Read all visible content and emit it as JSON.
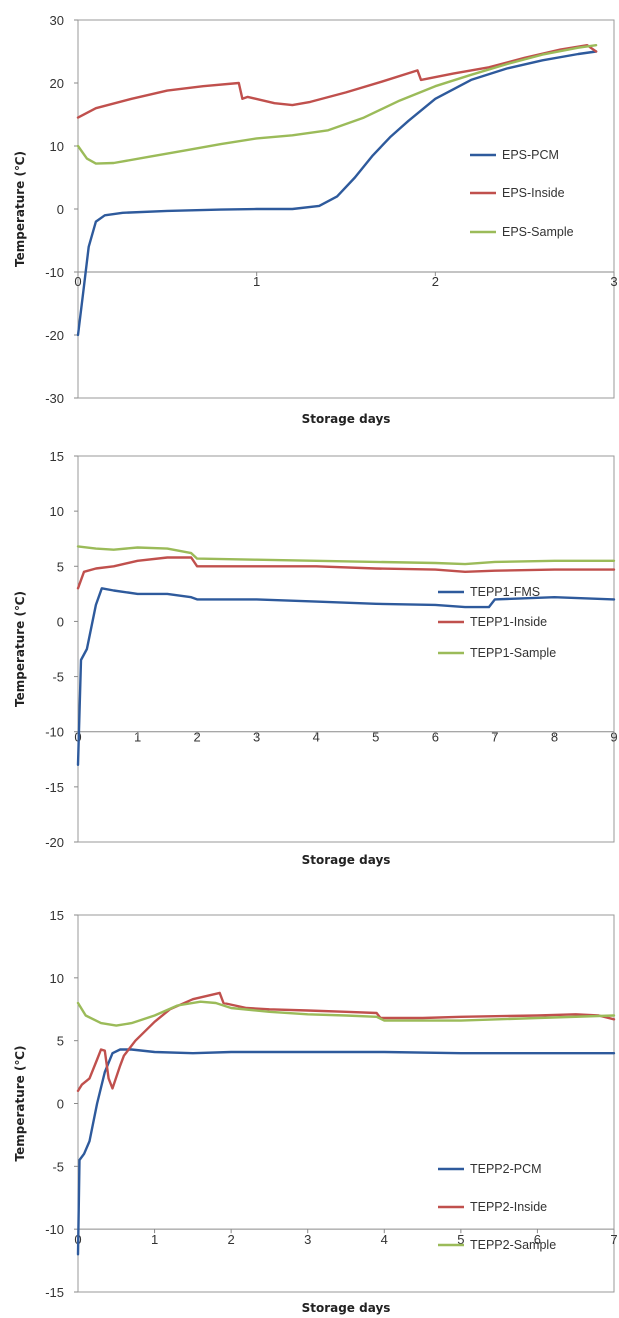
{
  "chart_data": [
    {
      "type": "line",
      "xlabel": "Storage days",
      "ylabel": "Temperature (℃)",
      "xlim": [
        0,
        3
      ],
      "ylim": [
        -30,
        30
      ],
      "xticks": [
        "0",
        "1",
        "2",
        "3"
      ],
      "yticks": [
        "-30",
        "-20",
        "-10",
        "0",
        "10",
        "20",
        "30"
      ],
      "x_axis_crosses_at": -10,
      "grid": false,
      "legend": "right",
      "series": [
        {
          "name": "EPS-PCM",
          "color": "#2E5A9C",
          "x": [
            0,
            0.03,
            0.06,
            0.1,
            0.15,
            0.25,
            0.5,
            0.8,
            1.0,
            1.2,
            1.35,
            1.45,
            1.55,
            1.65,
            1.75,
            1.85,
            2.0,
            2.2,
            2.4,
            2.6,
            2.8,
            2.9
          ],
          "y": [
            -20,
            -13,
            -6,
            -2,
            -1,
            -0.6,
            -0.3,
            -0.1,
            0,
            0,
            0.5,
            2,
            5,
            8.5,
            11.5,
            14,
            17.5,
            20.5,
            22.3,
            23.6,
            24.6,
            25
          ]
        },
        {
          "name": "EPS-Inside",
          "color": "#C0504D",
          "x": [
            0,
            0.1,
            0.3,
            0.5,
            0.7,
            0.9,
            0.92,
            0.95,
            1.1,
            1.2,
            1.3,
            1.5,
            1.7,
            1.9,
            1.92,
            2.1,
            2.3,
            2.5,
            2.7,
            2.85,
            2.9
          ],
          "y": [
            14.5,
            16,
            17.5,
            18.8,
            19.5,
            20,
            17.5,
            17.8,
            16.8,
            16.5,
            17,
            18.5,
            20.2,
            22,
            20.5,
            21.5,
            22.5,
            24,
            25.3,
            26,
            25
          ]
        },
        {
          "name": "EPS-Sample",
          "color": "#9BBB59",
          "x": [
            0,
            0.05,
            0.1,
            0.2,
            0.4,
            0.6,
            0.8,
            1.0,
            1.2,
            1.4,
            1.6,
            1.8,
            2.0,
            2.2,
            2.4,
            2.6,
            2.8,
            2.9
          ],
          "y": [
            10,
            8,
            7.2,
            7.3,
            8.3,
            9.3,
            10.3,
            11.2,
            11.7,
            12.5,
            14.5,
            17.2,
            19.5,
            21.3,
            23,
            24.5,
            25.6,
            26
          ]
        }
      ]
    },
    {
      "type": "line",
      "xlabel": "Storage days",
      "ylabel": "Temperature (℃)",
      "xlim": [
        0,
        9
      ],
      "ylim": [
        -20,
        15
      ],
      "xticks": [
        "0",
        "1",
        "2",
        "3",
        "4",
        "5",
        "6",
        "7",
        "8",
        "9"
      ],
      "yticks": [
        "-20",
        "-15",
        "-10",
        "-5",
        "0",
        "5",
        "10",
        "15"
      ],
      "x_axis_crosses_at": -10,
      "grid": false,
      "legend": "bottom-right",
      "series": [
        {
          "name": "TEPP1-FMS",
          "color": "#2E5A9C",
          "x": [
            0,
            0.05,
            0.15,
            0.3,
            0.4,
            0.6,
            1.0,
            1.5,
            1.9,
            2.0,
            3.0,
            4.0,
            5.0,
            6.0,
            6.5,
            6.9,
            7.0,
            8.0,
            9.0
          ],
          "y": [
            -13,
            -3.5,
            -2.5,
            1.5,
            3,
            2.8,
            2.5,
            2.5,
            2.2,
            2.0,
            2.0,
            1.8,
            1.6,
            1.5,
            1.3,
            1.3,
            2.0,
            2.2,
            2.0
          ]
        },
        {
          "name": "TEPP1-Inside",
          "color": "#C0504D",
          "x": [
            0,
            0.1,
            0.3,
            0.6,
            1.0,
            1.5,
            1.9,
            2.0,
            3.0,
            4.0,
            5.0,
            6.0,
            6.5,
            7.0,
            8.0,
            9.0
          ],
          "y": [
            3,
            4.5,
            4.8,
            5.0,
            5.5,
            5.8,
            5.8,
            5.0,
            5.0,
            5.0,
            4.8,
            4.7,
            4.5,
            4.6,
            4.7,
            4.7
          ]
        },
        {
          "name": "TEPP1-Sample",
          "color": "#9BBB59",
          "x": [
            0,
            0.3,
            0.6,
            1.0,
            1.5,
            1.9,
            2.0,
            3.0,
            4.0,
            5.0,
            6.0,
            6.5,
            7.0,
            8.0,
            9.0
          ],
          "y": [
            6.8,
            6.6,
            6.5,
            6.7,
            6.6,
            6.2,
            5.7,
            5.6,
            5.5,
            5.4,
            5.3,
            5.2,
            5.4,
            5.5,
            5.5
          ]
        }
      ]
    },
    {
      "type": "line",
      "xlabel": "Storage days",
      "ylabel": "Temperature (℃)",
      "xlim": [
        0,
        7
      ],
      "ylim": [
        -15,
        15
      ],
      "xticks": [
        "0",
        "1",
        "2",
        "3",
        "4",
        "5",
        "6",
        "7"
      ],
      "yticks": [
        "-15",
        "-10",
        "-5",
        "0",
        "5",
        "10",
        "15"
      ],
      "x_axis_crosses_at": -10,
      "grid": false,
      "legend": "bottom-right",
      "series": [
        {
          "name": "TEPP2-PCM",
          "color": "#2E5A9C",
          "x": [
            0,
            0.02,
            0.08,
            0.15,
            0.25,
            0.35,
            0.45,
            0.55,
            0.7,
            1.0,
            1.5,
            2.0,
            3.0,
            4.0,
            5.0,
            6.0,
            6.9,
            7.0
          ],
          "y": [
            -12,
            -4.5,
            -4,
            -3,
            0,
            2.5,
            4,
            4.3,
            4.3,
            4.1,
            4.0,
            4.1,
            4.1,
            4.1,
            4.0,
            4.0,
            4.0,
            4.0
          ]
        },
        {
          "name": "TEPP2-Inside",
          "color": "#C0504D",
          "x": [
            0,
            0.05,
            0.15,
            0.25,
            0.3,
            0.35,
            0.4,
            0.45,
            0.55,
            0.6,
            0.75,
            1.0,
            1.2,
            1.5,
            1.85,
            1.9,
            2.2,
            2.5,
            3.0,
            3.5,
            3.9,
            3.95,
            4.5,
            5.0,
            6.0,
            6.5,
            6.8,
            7.0
          ],
          "y": [
            1,
            1.5,
            2,
            3.5,
            4.3,
            4.2,
            2,
            1.2,
            3,
            3.8,
            5,
            6.5,
            7.5,
            8.3,
            8.8,
            8,
            7.6,
            7.5,
            7.4,
            7.3,
            7.2,
            6.8,
            6.8,
            6.9,
            7.0,
            7.1,
            7.0,
            6.7
          ]
        },
        {
          "name": "TEPP2-Sample",
          "color": "#9BBB59",
          "x": [
            0,
            0.1,
            0.3,
            0.5,
            0.7,
            1.0,
            1.3,
            1.6,
            1.8,
            2.0,
            2.5,
            3.0,
            3.5,
            3.9,
            4.0,
            5.0,
            6.0,
            7.0
          ],
          "y": [
            8,
            7,
            6.4,
            6.2,
            6.4,
            7.0,
            7.8,
            8.1,
            8.0,
            7.6,
            7.3,
            7.1,
            7.0,
            6.9,
            6.6,
            6.6,
            6.8,
            7.0
          ]
        }
      ]
    }
  ]
}
